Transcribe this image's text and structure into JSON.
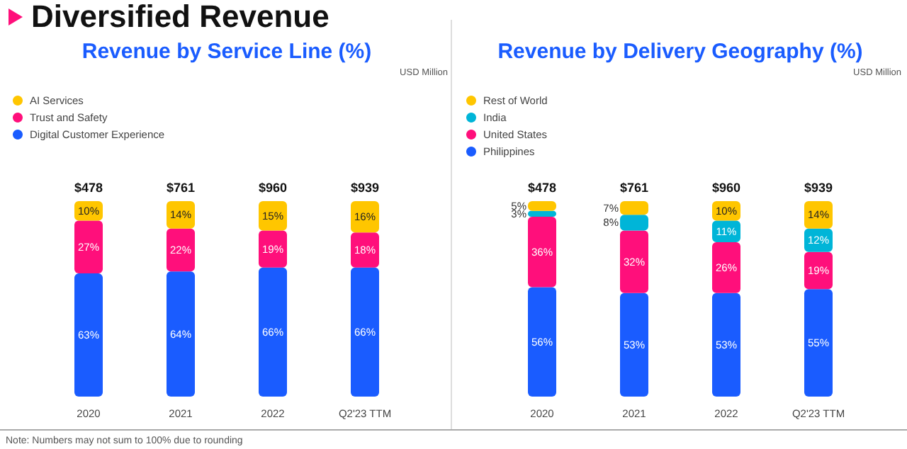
{
  "chart_data": [
    {
      "type": "bar",
      "title": "Diversified Revenue",
      "subtitle": "Revenue by Service Line (%)",
      "stacked": true,
      "legend": "top left",
      "grid": false,
      "categories": [
        "2020",
        "2021",
        "2022",
        "Q2'23 TTM"
      ],
      "series": [
        {
          "name": "Digital Customer Experience",
          "color": "#1a5cff",
          "values": [
            63,
            64,
            66,
            66
          ],
          "value_labels": [
            "63%",
            "64%",
            "66%",
            "66%"
          ]
        },
        {
          "name": "Trust and Safety",
          "color": "#ff0f7b",
          "values": [
            27,
            22,
            19,
            18
          ],
          "value_labels": [
            "27%",
            "22%",
            "19%",
            "18%"
          ]
        },
        {
          "name": "AI Services",
          "color": "#ffc600",
          "values": [
            10,
            14,
            15,
            16
          ],
          "value_labels": [
            "10%",
            "14%",
            "15%",
            "16%"
          ]
        }
      ],
      "annotations": [
        "USD Million",
        "Note: Numbers may not sum to 100% due to rounding",
        "$478",
        "$761",
        "$960",
        "$939"
      ]
    },
    {
      "type": "bar",
      "subtitle": "Revenue by Delivery Geography (%)",
      "stacked": true,
      "legend": "top left",
      "grid": false,
      "categories": [
        "2020",
        "2021",
        "2022",
        "Q2'23 TTM"
      ],
      "series": [
        {
          "name": "Philippines",
          "color": "#1a5cff",
          "values": [
            56,
            53,
            53,
            55
          ],
          "value_labels": [
            "56%",
            "53%",
            "53%",
            "55%"
          ]
        },
        {
          "name": "United States",
          "color": "#ff0f7b",
          "values": [
            36,
            32,
            26,
            19
          ],
          "value_labels": [
            "36%",
            "32%",
            "26%",
            "19%"
          ]
        },
        {
          "name": "India",
          "color": "#00b5d8",
          "values": [
            3,
            8,
            11,
            12
          ],
          "value_labels": [
            "3%",
            "8%",
            "11%",
            "12%"
          ]
        },
        {
          "name": "Rest of World",
          "color": "#ffc600",
          "values": [
            5,
            7,
            10,
            14
          ],
          "value_labels": [
            "5%",
            "7%",
            "10%",
            "14%"
          ]
        }
      ],
      "annotations": [
        "USD Million",
        "$478",
        "$761",
        "$960",
        "$939"
      ]
    }
  ]
}
